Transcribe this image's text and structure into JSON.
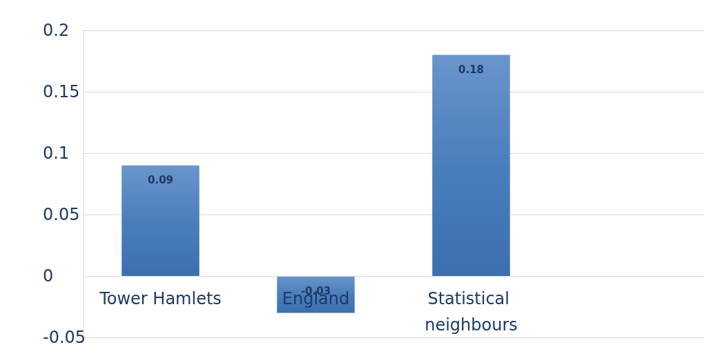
{
  "chart_data": {
    "type": "bar",
    "categories": [
      "Tower Hamlets",
      "England",
      "Statistical neighbours",
      null
    ],
    "values": [
      0.09,
      -0.03,
      0.18,
      null
    ],
    "color": "#4a7ebb",
    "ylim": [
      -0.05,
      0.2
    ],
    "yticks": [
      -0.05,
      0,
      0.05,
      0.1,
      0.15,
      0.2
    ],
    "grid": "y",
    "data_labels": true
  }
}
